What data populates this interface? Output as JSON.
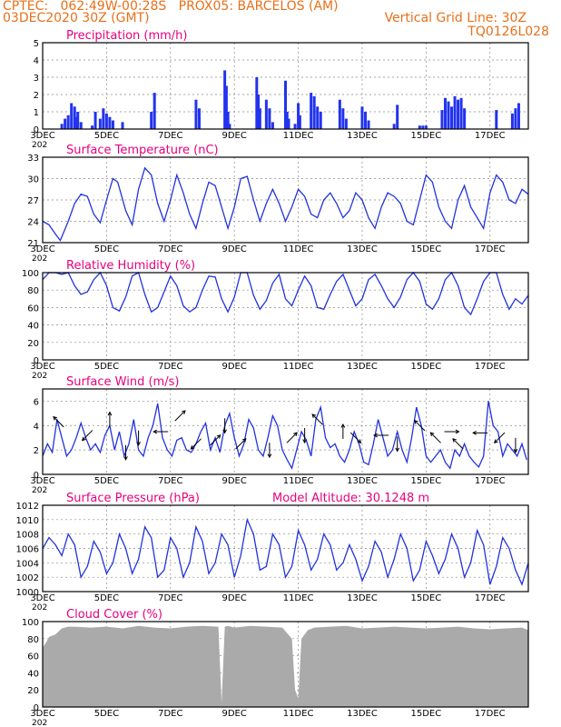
{
  "header": {
    "line1": "CPTEC:   062:49W-00:28S   PROX05: BARCELOS (AM)",
    "line2_left": "03DEC2020 30Z (GMT)",
    "line2_right": "Vertical Grid Line: 30Z",
    "line3_right": "TQ0126L028"
  },
  "colors": {
    "accent": "#e8701a",
    "title": "#e6007e",
    "series": "#2233dd",
    "cloud": "#aaaaaa",
    "bars": "#2233ee"
  },
  "x_ticks": [
    "3DEC",
    "5DEC",
    "7DEC",
    "9DEC",
    "11DEC",
    "13DEC",
    "15DEC",
    "17DEC"
  ],
  "x_extra": "202",
  "chart_data": [
    {
      "id": "precip",
      "type": "bar",
      "title": "Precipitation (mm/h)",
      "ylim": [
        0,
        5
      ],
      "yticks": [
        "0",
        "1",
        "2",
        "3",
        "4",
        "5"
      ],
      "x_range_days": [
        3,
        18.2
      ],
      "x": [
        3.6,
        3.7,
        3.8,
        3.9,
        4.0,
        4.05,
        4.1,
        4.2,
        4.55,
        4.65,
        4.8,
        4.9,
        5.0,
        5.1,
        5.2,
        5.5,
        6.4,
        6.5,
        7.8,
        7.9,
        8.7,
        8.75,
        8.8,
        8.85,
        9.7,
        9.75,
        9.8,
        10.0,
        10.1,
        10.2,
        10.6,
        10.65,
        10.7,
        10.9,
        11.0,
        11.05,
        11.4,
        11.5,
        11.6,
        11.7,
        12.3,
        12.4,
        12.5,
        13.0,
        13.1,
        13.2,
        14.0,
        14.1,
        14.8,
        14.9,
        15.0,
        15.5,
        15.6,
        15.7,
        15.8,
        15.9,
        16.0,
        16.1,
        16.2,
        17.2,
        17.7,
        17.8,
        17.9
      ],
      "values": [
        0.3,
        0.6,
        0.8,
        1.5,
        1.3,
        0.7,
        1.0,
        0.4,
        0.2,
        1.0,
        0.6,
        1.2,
        0.9,
        0.7,
        0.5,
        0.4,
        1.0,
        2.1,
        1.7,
        1.2,
        3.4,
        2.5,
        1.0,
        0.3,
        3.0,
        2.0,
        1.2,
        1.7,
        1.2,
        0.4,
        2.8,
        1.0,
        0.6,
        0.3,
        1.5,
        0.8,
        2.1,
        1.9,
        1.3,
        1.0,
        1.7,
        1.2,
        0.6,
        1.3,
        1.0,
        0.5,
        0.3,
        1.4,
        0.2,
        0.2,
        0.2,
        1.1,
        1.8,
        1.6,
        1.3,
        1.9,
        1.7,
        1.8,
        1.2,
        1.1,
        0.9,
        1.2,
        1.5
      ]
    },
    {
      "id": "temp",
      "type": "line",
      "title": "Surface Temperature (nC)",
      "ylim": [
        21,
        33
      ],
      "yticks": [
        "21",
        "24",
        "27",
        "30",
        "33"
      ],
      "ytick_values": [
        21,
        24,
        27,
        30,
        33
      ],
      "x_range_days": [
        3,
        18.2
      ],
      "x": [
        3.0,
        3.2,
        3.4,
        3.55,
        3.8,
        4.0,
        4.2,
        4.4,
        4.6,
        4.8,
        5.0,
        5.2,
        5.35,
        5.6,
        5.8,
        6.0,
        6.2,
        6.4,
        6.6,
        6.8,
        7.0,
        7.2,
        7.4,
        7.6,
        7.8,
        8.0,
        8.2,
        8.4,
        8.6,
        8.8,
        9.0,
        9.2,
        9.4,
        9.6,
        9.8,
        10.0,
        10.2,
        10.4,
        10.6,
        10.8,
        11.0,
        11.2,
        11.4,
        11.6,
        11.8,
        12.0,
        12.2,
        12.4,
        12.6,
        12.8,
        13.0,
        13.2,
        13.4,
        13.6,
        13.8,
        14.0,
        14.2,
        14.4,
        14.6,
        14.8,
        15.0,
        15.2,
        15.4,
        15.6,
        15.8,
        16.0,
        16.2,
        16.4,
        16.6,
        16.8,
        17.0,
        17.2,
        17.4,
        17.6,
        17.8,
        18.0,
        18.2
      ],
      "values": [
        24.0,
        23.5,
        22.2,
        21.3,
        24.0,
        26.5,
        27.8,
        27.5,
        25.0,
        23.8,
        27.0,
        30.0,
        29.5,
        25.5,
        23.5,
        28.5,
        31.5,
        30.5,
        26.5,
        24.0,
        27.0,
        30.5,
        28.0,
        25.0,
        23.0,
        26.5,
        29.5,
        29.0,
        26.0,
        23.0,
        26.0,
        30.0,
        30.3,
        27.0,
        24.0,
        26.5,
        28.5,
        26.5,
        24.0,
        26.0,
        28.5,
        27.5,
        25.0,
        24.5,
        27.0,
        28.0,
        26.5,
        24.5,
        25.5,
        28.0,
        27.0,
        24.5,
        23.0,
        26.0,
        28.0,
        27.5,
        26.5,
        24.0,
        23.5,
        27.0,
        30.5,
        29.5,
        26.0,
        24.0,
        23.0,
        27.0,
        29.0,
        26.0,
        24.5,
        23.0,
        28.0,
        30.5,
        29.5,
        27.0,
        26.5,
        28.5,
        27.8
      ]
    },
    {
      "id": "rh",
      "type": "line",
      "title": "Relative Humidity (%)",
      "ylim": [
        0,
        100
      ],
      "yticks": [
        "0",
        "20",
        "40",
        "60",
        "80",
        "100"
      ],
      "ytick_values": [
        0,
        20,
        40,
        60,
        80,
        100
      ],
      "x_range_days": [
        3,
        18.2
      ],
      "x": [
        3.0,
        3.2,
        3.4,
        3.6,
        3.8,
        4.0,
        4.2,
        4.4,
        4.6,
        4.8,
        5.0,
        5.2,
        5.4,
        5.6,
        5.8,
        6.0,
        6.2,
        6.4,
        6.6,
        6.8,
        7.0,
        7.2,
        7.4,
        7.6,
        7.8,
        8.0,
        8.2,
        8.4,
        8.6,
        8.8,
        9.0,
        9.2,
        9.4,
        9.6,
        9.8,
        10.0,
        10.2,
        10.4,
        10.6,
        10.8,
        11.0,
        11.2,
        11.4,
        11.6,
        11.8,
        12.0,
        12.2,
        12.4,
        12.6,
        12.8,
        13.0,
        13.2,
        13.4,
        13.6,
        13.8,
        14.0,
        14.2,
        14.4,
        14.6,
        14.8,
        15.0,
        15.2,
        15.4,
        15.6,
        15.8,
        16.0,
        16.2,
        16.4,
        16.6,
        16.8,
        17.0,
        17.2,
        17.4,
        17.6,
        17.8,
        18.0,
        18.2
      ],
      "values": [
        92,
        100,
        100,
        98,
        100,
        85,
        75,
        78,
        92,
        100,
        85,
        60,
        56,
        72,
        96,
        100,
        75,
        55,
        60,
        78,
        96,
        85,
        62,
        55,
        60,
        80,
        96,
        95,
        70,
        55,
        72,
        100,
        100,
        74,
        58,
        68,
        88,
        98,
        70,
        62,
        80,
        96,
        85,
        60,
        58,
        75,
        90,
        98,
        80,
        62,
        70,
        92,
        98,
        85,
        70,
        60,
        72,
        92,
        100,
        90,
        64,
        58,
        70,
        92,
        100,
        85,
        60,
        52,
        70,
        90,
        100,
        100,
        75,
        58,
        70,
        64,
        74
      ]
    },
    {
      "id": "wind",
      "type": "line",
      "title": "Surface Wind (m/s)",
      "ylim": [
        0,
        7
      ],
      "yticks": [
        "0",
        "2",
        "4",
        "6"
      ],
      "ytick_values": [
        0,
        2,
        4,
        6
      ],
      "x_range_days": [
        3,
        18.2
      ],
      "x": [
        3.0,
        3.15,
        3.3,
        3.45,
        3.6,
        3.75,
        3.9,
        4.05,
        4.2,
        4.35,
        4.5,
        4.65,
        4.8,
        4.95,
        5.1,
        5.25,
        5.4,
        5.55,
        5.7,
        5.85,
        6.0,
        6.15,
        6.3,
        6.45,
        6.6,
        6.75,
        6.9,
        7.05,
        7.2,
        7.35,
        7.5,
        7.65,
        7.8,
        7.95,
        8.1,
        8.25,
        8.4,
        8.55,
        8.7,
        8.85,
        9.0,
        9.15,
        9.3,
        9.45,
        9.6,
        9.75,
        9.9,
        10.05,
        10.2,
        10.35,
        10.5,
        10.65,
        10.8,
        10.95,
        11.1,
        11.25,
        11.4,
        11.55,
        11.7,
        11.85,
        12.0,
        12.15,
        12.3,
        12.45,
        12.6,
        12.75,
        12.9,
        13.05,
        13.2,
        13.35,
        13.5,
        13.65,
        13.8,
        13.95,
        14.1,
        14.25,
        14.4,
        14.55,
        14.7,
        14.85,
        15.0,
        15.15,
        15.3,
        15.45,
        15.6,
        15.75,
        15.9,
        16.05,
        16.2,
        16.35,
        16.5,
        16.65,
        16.8,
        16.95,
        17.1,
        17.25,
        17.4,
        17.55,
        17.7,
        17.85,
        18.0,
        18.15
      ],
      "values": [
        1.5,
        2.5,
        1.8,
        4.5,
        3.0,
        1.5,
        2.0,
        3.0,
        4.2,
        3.0,
        2.0,
        2.5,
        1.8,
        3.2,
        4.0,
        2.0,
        3.5,
        1.5,
        2.5,
        4.5,
        2.0,
        1.5,
        3.0,
        4.0,
        5.8,
        3.0,
        2.0,
        1.5,
        2.8,
        3.0,
        2.0,
        1.8,
        2.5,
        3.5,
        4.2,
        2.0,
        3.0,
        1.8,
        4.0,
        5.0,
        3.0,
        1.5,
        2.5,
        4.5,
        3.8,
        2.0,
        1.5,
        3.0,
        4.8,
        4.0,
        2.0,
        1.2,
        0.5,
        2.0,
        3.5,
        2.8,
        1.5,
        4.5,
        5.5,
        3.0,
        2.2,
        2.5,
        1.5,
        1.0,
        2.0,
        3.5,
        2.5,
        1.0,
        0.8,
        2.5,
        4.5,
        3.0,
        1.5,
        2.0,
        3.5,
        2.0,
        1.0,
        3.0,
        5.5,
        4.0,
        1.5,
        1.0,
        1.5,
        2.0,
        1.0,
        0.5,
        2.0,
        1.5,
        2.5,
        1.5,
        1.0,
        0.6,
        1.5,
        6.0,
        4.0,
        3.5,
        1.5,
        2.5,
        2.0,
        1.5,
        2.5,
        1.2
      ]
    },
    {
      "id": "pres",
      "type": "line",
      "title": "Surface Pressure (hPa)",
      "annotation": "Model Altitude: 30.1248 m",
      "ylim": [
        1000,
        1012
      ],
      "yticks": [
        "1000",
        "1002",
        "1004",
        "1006",
        "1008",
        "1010",
        "1012"
      ],
      "ytick_values": [
        1000,
        1002,
        1004,
        1006,
        1008,
        1010,
        1012
      ],
      "x_range_days": [
        3,
        18.2
      ],
      "x": [
        3.0,
        3.2,
        3.4,
        3.6,
        3.8,
        4.0,
        4.2,
        4.4,
        4.6,
        4.8,
        5.0,
        5.2,
        5.4,
        5.6,
        5.8,
        6.0,
        6.2,
        6.4,
        6.6,
        6.8,
        7.0,
        7.2,
        7.4,
        7.6,
        7.8,
        8.0,
        8.2,
        8.4,
        8.6,
        8.8,
        9.0,
        9.2,
        9.4,
        9.6,
        9.8,
        10.0,
        10.2,
        10.4,
        10.6,
        10.8,
        11.0,
        11.2,
        11.4,
        11.6,
        11.8,
        12.0,
        12.2,
        12.4,
        12.6,
        12.8,
        13.0,
        13.2,
        13.4,
        13.6,
        13.8,
        14.0,
        14.2,
        14.4,
        14.6,
        14.8,
        15.0,
        15.2,
        15.4,
        15.6,
        15.8,
        16.0,
        16.2,
        16.4,
        16.6,
        16.8,
        17.0,
        17.2,
        17.4,
        17.6,
        17.8,
        18.0,
        18.2
      ],
      "values": [
        1006.0,
        1007.5,
        1006.5,
        1005.0,
        1008.0,
        1006.5,
        1002.0,
        1003.5,
        1007.0,
        1005.5,
        1002.5,
        1004.0,
        1008.0,
        1006.0,
        1002.5,
        1004.5,
        1009.0,
        1007.5,
        1002.0,
        1003.0,
        1007.5,
        1006.0,
        1002.0,
        1004.0,
        1009.0,
        1007.0,
        1002.5,
        1004.0,
        1008.0,
        1006.5,
        1002.0,
        1005.0,
        1010.0,
        1008.0,
        1003.0,
        1003.5,
        1008.0,
        1006.5,
        1002.0,
        1003.5,
        1008.5,
        1006.5,
        1003.0,
        1004.5,
        1008.0,
        1006.5,
        1003.0,
        1004.0,
        1006.5,
        1004.5,
        1001.5,
        1003.5,
        1007.0,
        1005.5,
        1002.0,
        1004.5,
        1008.0,
        1006.0,
        1001.5,
        1003.0,
        1007.0,
        1005.0,
        1002.5,
        1004.5,
        1008.0,
        1006.0,
        1002.0,
        1004.0,
        1008.5,
        1006.5,
        1001.0,
        1003.5,
        1007.5,
        1006.0,
        1003.0,
        1001.0,
        1004.0
      ]
    },
    {
      "id": "cloud",
      "type": "area",
      "title": "Cloud Cover (%)",
      "ylim": [
        0,
        100
      ],
      "yticks": [
        "0",
        "20",
        "40",
        "60",
        "80",
        "100"
      ],
      "ytick_values": [
        0,
        20,
        40,
        60,
        80,
        100
      ],
      "x_range_days": [
        3,
        18.2
      ],
      "x": [
        3.0,
        3.1,
        3.2,
        3.4,
        3.6,
        3.8,
        4.0,
        4.5,
        5.0,
        5.5,
        6.0,
        6.5,
        7.0,
        7.5,
        8.0,
        8.5,
        8.6,
        8.7,
        8.8,
        9.0,
        9.5,
        10.0,
        10.5,
        10.8,
        10.9,
        11.0,
        11.1,
        11.3,
        11.5,
        12.0,
        12.5,
        13.0,
        13.5,
        14.0,
        14.5,
        15.0,
        15.5,
        16.0,
        16.5,
        17.0,
        17.5,
        18.0,
        18.2
      ],
      "values": [
        70,
        75,
        82,
        85,
        92,
        94,
        94,
        93,
        94,
        92,
        95,
        93,
        92,
        94,
        95,
        94,
        5,
        94,
        95,
        93,
        95,
        94,
        93,
        80,
        20,
        10,
        80,
        90,
        93,
        94,
        95,
        92,
        93,
        94,
        93,
        92,
        93,
        94,
        92,
        91,
        92,
        93,
        90
      ]
    }
  ],
  "wind_arrows": [
    {
      "x": 3.5,
      "y": 4.3,
      "dir": "up-left"
    },
    {
      "x": 4.4,
      "y": 3.2,
      "dir": "down-left"
    },
    {
      "x": 5.1,
      "y": 4.5,
      "dir": "up"
    },
    {
      "x": 5.6,
      "y": 1.8,
      "dir": "down"
    },
    {
      "x": 6.0,
      "y": 3.0,
      "dir": "down"
    },
    {
      "x": 6.7,
      "y": 3.5,
      "dir": "left"
    },
    {
      "x": 7.3,
      "y": 4.8,
      "dir": "up-right"
    },
    {
      "x": 7.8,
      "y": 2.5,
      "dir": "down-left"
    },
    {
      "x": 8.4,
      "y": 2.8,
      "dir": "up-right"
    },
    {
      "x": 8.7,
      "y": 4.0,
      "dir": "down"
    },
    {
      "x": 9.2,
      "y": 2.5,
      "dir": "up-right"
    },
    {
      "x": 10.1,
      "y": 2.0,
      "dir": "down"
    },
    {
      "x": 10.8,
      "y": 3.0,
      "dir": "up-right"
    },
    {
      "x": 11.2,
      "y": 3.2,
      "dir": "down"
    },
    {
      "x": 11.6,
      "y": 4.5,
      "dir": "up-left"
    },
    {
      "x": 12.4,
      "y": 3.5,
      "dir": "up"
    },
    {
      "x": 12.8,
      "y": 3.0,
      "dir": "down-right"
    },
    {
      "x": 13.6,
      "y": 3.2,
      "dir": "left"
    },
    {
      "x": 14.1,
      "y": 2.5,
      "dir": "down"
    },
    {
      "x": 14.8,
      "y": 4.0,
      "dir": "up-left"
    },
    {
      "x": 15.3,
      "y": 3.0,
      "dir": "up-left"
    },
    {
      "x": 15.8,
      "y": 3.5,
      "dir": "right"
    },
    {
      "x": 16.0,
      "y": 2.5,
      "dir": "up-left"
    },
    {
      "x": 16.7,
      "y": 3.4,
      "dir": "left"
    },
    {
      "x": 17.3,
      "y": 3.0,
      "dir": "down-left"
    },
    {
      "x": 17.8,
      "y": 2.4,
      "dir": "down"
    }
  ]
}
